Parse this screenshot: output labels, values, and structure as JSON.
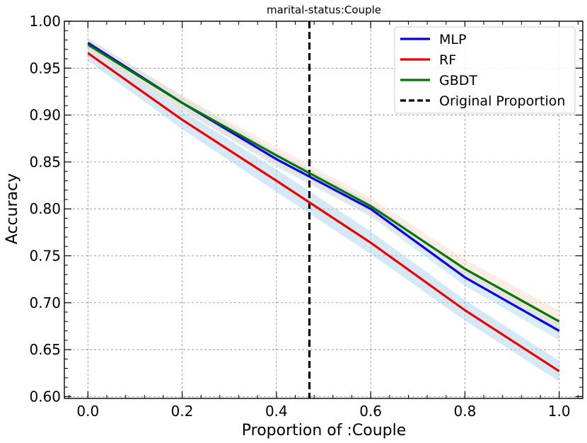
{
  "chart_data": {
    "type": "line",
    "title": "marital-status:Couple",
    "xlabel": "Proportion of :Couple",
    "ylabel": "Accuracy",
    "xlim": [
      -0.05,
      1.05
    ],
    "ylim": [
      0.598,
      1.0
    ],
    "x_ticks": [
      0.0,
      0.2,
      0.4,
      0.6,
      0.8,
      1.0
    ],
    "x_tick_labels": [
      "0.0",
      "0.2",
      "0.4",
      "0.6",
      "0.8",
      "1.0"
    ],
    "y_ticks": [
      0.6,
      0.65,
      0.7,
      0.75,
      0.8,
      0.85,
      0.9,
      0.95,
      1.0
    ],
    "y_tick_labels": [
      "0.60",
      "0.65",
      "0.70",
      "0.75",
      "0.80",
      "0.85",
      "0.90",
      "0.95",
      "1.00"
    ],
    "grid": true,
    "legend_position": "top-right",
    "x": [
      0.0,
      0.2,
      0.4,
      0.6,
      0.8,
      1.0
    ],
    "series": [
      {
        "name": "MLP",
        "color": "#0000ee",
        "band_color": "#a8d8ea",
        "values": [
          0.977,
          0.913,
          0.853,
          0.8,
          0.727,
          0.67
        ],
        "band_lower": [
          0.972,
          0.906,
          0.845,
          0.792,
          0.718,
          0.66
        ],
        "band_upper": [
          0.982,
          0.92,
          0.861,
          0.808,
          0.736,
          0.68
        ]
      },
      {
        "name": "RF",
        "color": "#ee0000",
        "band_color": "#9fcfe9",
        "values": [
          0.966,
          0.895,
          0.83,
          0.764,
          0.692,
          0.627
        ],
        "band_lower": [
          0.958,
          0.885,
          0.818,
          0.752,
          0.681,
          0.616
        ],
        "band_upper": [
          0.974,
          0.905,
          0.842,
          0.776,
          0.703,
          0.638
        ]
      },
      {
        "name": "GBDT",
        "color": "#007700",
        "band_color": "#fbd9c6",
        "values": [
          0.975,
          0.913,
          0.857,
          0.803,
          0.736,
          0.68
        ],
        "band_lower": [
          0.969,
          0.905,
          0.848,
          0.794,
          0.726,
          0.668
        ],
        "band_upper": [
          0.981,
          0.921,
          0.866,
          0.812,
          0.746,
          0.692
        ]
      }
    ],
    "reference_line": {
      "name": "Original Proportion",
      "x": 0.47,
      "color": "#000000"
    }
  }
}
